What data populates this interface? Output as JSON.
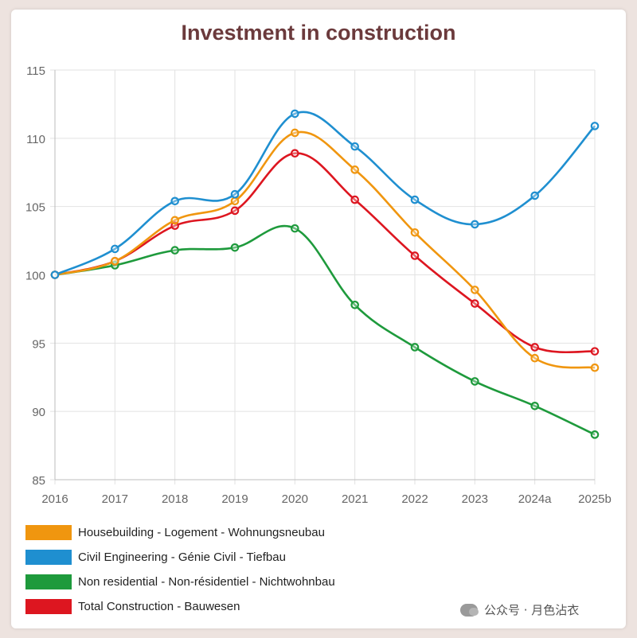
{
  "chart_data": {
    "type": "line",
    "title": "Investment in construction",
    "xlabel": "",
    "ylabel": "",
    "categories": [
      "2016",
      "2017",
      "2018",
      "2019",
      "2020",
      "2021",
      "2022",
      "2023",
      "2024a",
      "2025b"
    ],
    "ylim": [
      85,
      115
    ],
    "yticks": [
      85,
      90,
      95,
      100,
      105,
      110,
      115
    ],
    "grid": true,
    "legend_position": "bottom",
    "series": [
      {
        "name": "Housebuilding - Logement - Wohnungsneubau",
        "color": "#f0960f",
        "values": [
          100,
          101,
          104,
          105.4,
          110.4,
          107.7,
          103.1,
          98.9,
          93.9,
          93.2
        ]
      },
      {
        "name": "Civil Engineering - Génie Civil - Tiefbau",
        "color": "#1f8fd0",
        "values": [
          100,
          101.9,
          105.4,
          105.9,
          111.8,
          109.4,
          105.5,
          103.7,
          105.8,
          110.9
        ]
      },
      {
        "name": "Non residential - Non-résidentiel - Nichtwohnbau",
        "color": "#1e9a3c",
        "values": [
          100,
          100.7,
          101.8,
          102,
          103.4,
          97.8,
          94.7,
          92.2,
          90.4,
          88.3
        ]
      },
      {
        "name": "Total Construction - Bauwesen",
        "color": "#dd1620",
        "values": [
          100,
          101,
          103.6,
          104.7,
          108.9,
          105.5,
          101.4,
          97.9,
          94.7,
          94.4
        ]
      }
    ]
  },
  "watermark": {
    "text": "公众号 · 月色沾衣"
  }
}
